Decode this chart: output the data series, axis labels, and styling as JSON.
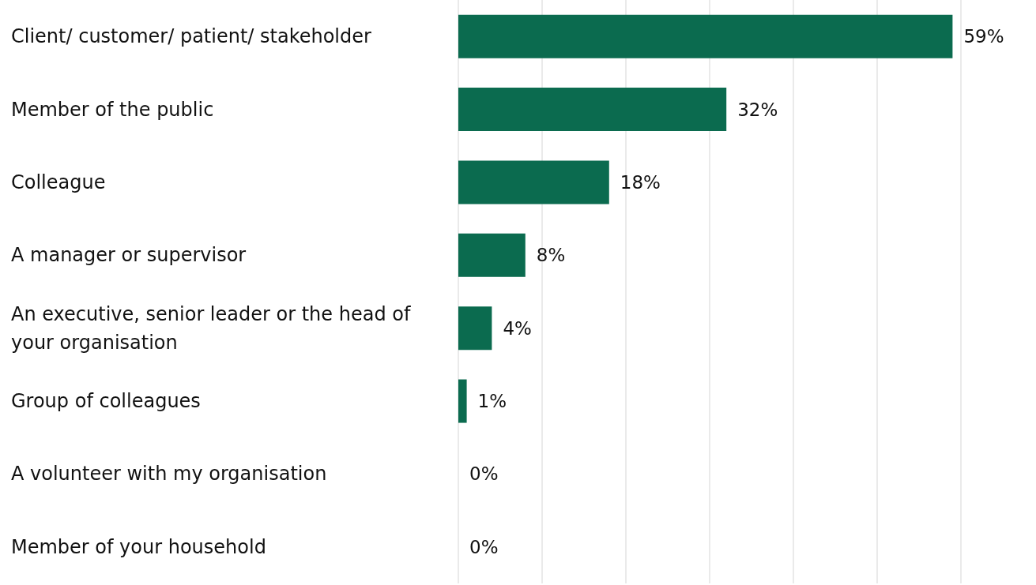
{
  "chart_data": {
    "type": "bar",
    "orientation": "horizontal",
    "categories": [
      "Client/ customer/ patient/ stakeholder",
      "Member of the public",
      "Colleague",
      "A manager or supervisor",
      "An executive, senior leader or the head of your organisation",
      "Group of colleagues",
      "A volunteer with my organisation",
      "Member of your household"
    ],
    "values": [
      59,
      32,
      18,
      8,
      4,
      1,
      0,
      0
    ],
    "value_labels": [
      "59%",
      "32%",
      "18%",
      "8%",
      "4%",
      "1%",
      "0%",
      "0%"
    ],
    "color": "#0b6b4f",
    "xlim": [
      0,
      60
    ],
    "xticks": [
      0,
      10,
      20,
      30,
      40,
      50,
      60
    ],
    "grid": "x",
    "tick_labels": "y"
  }
}
